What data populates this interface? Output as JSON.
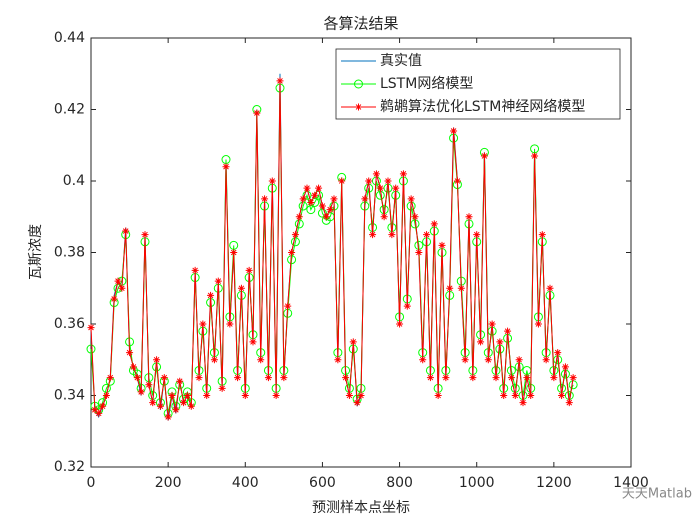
{
  "chart_data": {
    "type": "line",
    "title": "各算法结果",
    "xlabel": "预测样本点坐标",
    "ylabel": "瓦斯浓度",
    "watermark": "天天Matlab",
    "legend": "northeast",
    "grid": false,
    "xlim": [
      0,
      1400
    ],
    "xticks": [
      0,
      200,
      400,
      600,
      800,
      1000,
      1200,
      1400
    ],
    "ylim": [
      0.32,
      0.44
    ],
    "yticks": [
      0.32,
      0.34,
      0.36,
      0.38,
      0.4,
      0.42,
      0.44
    ],
    "x": [
      0,
      10,
      20,
      30,
      40,
      50,
      60,
      70,
      80,
      90,
      100,
      110,
      120,
      130,
      140,
      150,
      160,
      170,
      180,
      190,
      200,
      210,
      220,
      230,
      240,
      250,
      260,
      270,
      280,
      290,
      300,
      310,
      320,
      330,
      340,
      350,
      360,
      370,
      380,
      390,
      400,
      410,
      420,
      430,
      440,
      450,
      460,
      470,
      480,
      490,
      500,
      510,
      520,
      530,
      540,
      550,
      560,
      570,
      580,
      590,
      600,
      610,
      620,
      630,
      640,
      650,
      660,
      670,
      680,
      690,
      700,
      710,
      720,
      730,
      740,
      750,
      760,
      770,
      780,
      790,
      800,
      810,
      820,
      830,
      840,
      850,
      860,
      870,
      880,
      890,
      900,
      910,
      920,
      930,
      940,
      950,
      960,
      970,
      980,
      990,
      1000,
      1010,
      1020,
      1030,
      1040,
      1050,
      1060,
      1070,
      1080,
      1090,
      1100,
      1110,
      1120,
      1130,
      1140,
      1150,
      1160,
      1170,
      1180,
      1190,
      1200,
      1210,
      1220,
      1230,
      1240,
      1250
    ],
    "series": [
      {
        "name": "真实值",
        "color": "#0072BD",
        "marker": "none",
        "values": [
          0.358,
          0.336,
          0.334,
          0.337,
          0.34,
          0.345,
          0.368,
          0.372,
          0.37,
          0.387,
          0.352,
          0.348,
          0.345,
          0.34,
          0.385,
          0.343,
          0.338,
          0.35,
          0.336,
          0.345,
          0.333,
          0.34,
          0.335,
          0.344,
          0.338,
          0.34,
          0.337,
          0.375,
          0.345,
          0.36,
          0.34,
          0.368,
          0.35,
          0.372,
          0.342,
          0.405,
          0.36,
          0.38,
          0.345,
          0.37,
          0.34,
          0.375,
          0.355,
          0.42,
          0.35,
          0.395,
          0.345,
          0.4,
          0.34,
          0.43,
          0.345,
          0.365,
          0.38,
          0.385,
          0.39,
          0.395,
          0.398,
          0.394,
          0.396,
          0.398,
          0.393,
          0.39,
          0.392,
          0.395,
          0.35,
          0.4,
          0.345,
          0.34,
          0.355,
          0.337,
          0.34,
          0.395,
          0.4,
          0.385,
          0.402,
          0.398,
          0.39,
          0.4,
          0.385,
          0.398,
          0.36,
          0.402,
          0.365,
          0.395,
          0.39,
          0.38,
          0.35,
          0.385,
          0.345,
          0.388,
          0.34,
          0.382,
          0.345,
          0.37,
          0.415,
          0.4,
          0.37,
          0.35,
          0.39,
          0.345,
          0.385,
          0.355,
          0.408,
          0.35,
          0.36,
          0.345,
          0.355,
          0.34,
          0.358,
          0.345,
          0.34,
          0.35,
          0.338,
          0.345,
          0.34,
          0.408,
          0.36,
          0.385,
          0.35,
          0.37,
          0.345,
          0.352,
          0.34,
          0.348,
          0.338,
          0.345
        ]
      },
      {
        "name": "LSTM网络模型",
        "color": "#00FF00",
        "marker": "circle",
        "values": [
          0.353,
          0.337,
          0.336,
          0.338,
          0.342,
          0.344,
          0.366,
          0.37,
          0.372,
          0.385,
          0.355,
          0.347,
          0.346,
          0.342,
          0.383,
          0.345,
          0.34,
          0.348,
          0.338,
          0.344,
          0.335,
          0.341,
          0.337,
          0.343,
          0.339,
          0.341,
          0.338,
          0.373,
          0.347,
          0.358,
          0.342,
          0.366,
          0.352,
          0.37,
          0.344,
          0.406,
          0.362,
          0.382,
          0.347,
          0.368,
          0.342,
          0.373,
          0.357,
          0.42,
          0.352,
          0.393,
          0.347,
          0.398,
          0.342,
          0.426,
          0.347,
          0.363,
          0.378,
          0.383,
          0.388,
          0.393,
          0.396,
          0.392,
          0.394,
          0.396,
          0.391,
          0.389,
          0.39,
          0.393,
          0.352,
          0.401,
          0.347,
          0.342,
          0.353,
          0.339,
          0.342,
          0.393,
          0.398,
          0.387,
          0.4,
          0.396,
          0.392,
          0.398,
          0.387,
          0.396,
          0.362,
          0.4,
          0.367,
          0.393,
          0.388,
          0.382,
          0.352,
          0.383,
          0.347,
          0.386,
          0.342,
          0.38,
          0.347,
          0.368,
          0.412,
          0.399,
          0.372,
          0.352,
          0.388,
          0.347,
          0.383,
          0.357,
          0.408,
          0.352,
          0.358,
          0.347,
          0.353,
          0.342,
          0.356,
          0.347,
          0.342,
          0.348,
          0.34,
          0.347,
          0.342,
          0.409,
          0.362,
          0.383,
          0.352,
          0.368,
          0.347,
          0.35,
          0.342,
          0.346,
          0.34,
          0.343
        ]
      },
      {
        "name": "鹈鹕算法优化LSTM神经网络模型",
        "color": "#FF0000",
        "marker": "asterisk",
        "values": [
          0.359,
          0.336,
          0.335,
          0.337,
          0.34,
          0.345,
          0.367,
          0.372,
          0.37,
          0.386,
          0.352,
          0.348,
          0.345,
          0.341,
          0.385,
          0.343,
          0.338,
          0.35,
          0.337,
          0.345,
          0.334,
          0.34,
          0.336,
          0.344,
          0.338,
          0.34,
          0.337,
          0.375,
          0.345,
          0.36,
          0.34,
          0.368,
          0.35,
          0.372,
          0.342,
          0.404,
          0.36,
          0.38,
          0.345,
          0.37,
          0.34,
          0.375,
          0.355,
          0.419,
          0.35,
          0.395,
          0.345,
          0.4,
          0.34,
          0.428,
          0.345,
          0.365,
          0.38,
          0.385,
          0.39,
          0.395,
          0.398,
          0.394,
          0.396,
          0.398,
          0.393,
          0.39,
          0.392,
          0.395,
          0.35,
          0.4,
          0.345,
          0.34,
          0.355,
          0.338,
          0.34,
          0.395,
          0.4,
          0.385,
          0.402,
          0.398,
          0.39,
          0.4,
          0.385,
          0.398,
          0.36,
          0.402,
          0.365,
          0.395,
          0.39,
          0.38,
          0.35,
          0.385,
          0.345,
          0.388,
          0.34,
          0.382,
          0.345,
          0.37,
          0.414,
          0.4,
          0.37,
          0.35,
          0.39,
          0.345,
          0.385,
          0.355,
          0.407,
          0.35,
          0.36,
          0.345,
          0.355,
          0.34,
          0.358,
          0.345,
          0.34,
          0.35,
          0.338,
          0.345,
          0.34,
          0.407,
          0.36,
          0.385,
          0.35,
          0.37,
          0.345,
          0.352,
          0.34,
          0.348,
          0.338,
          0.345
        ]
      }
    ]
  }
}
